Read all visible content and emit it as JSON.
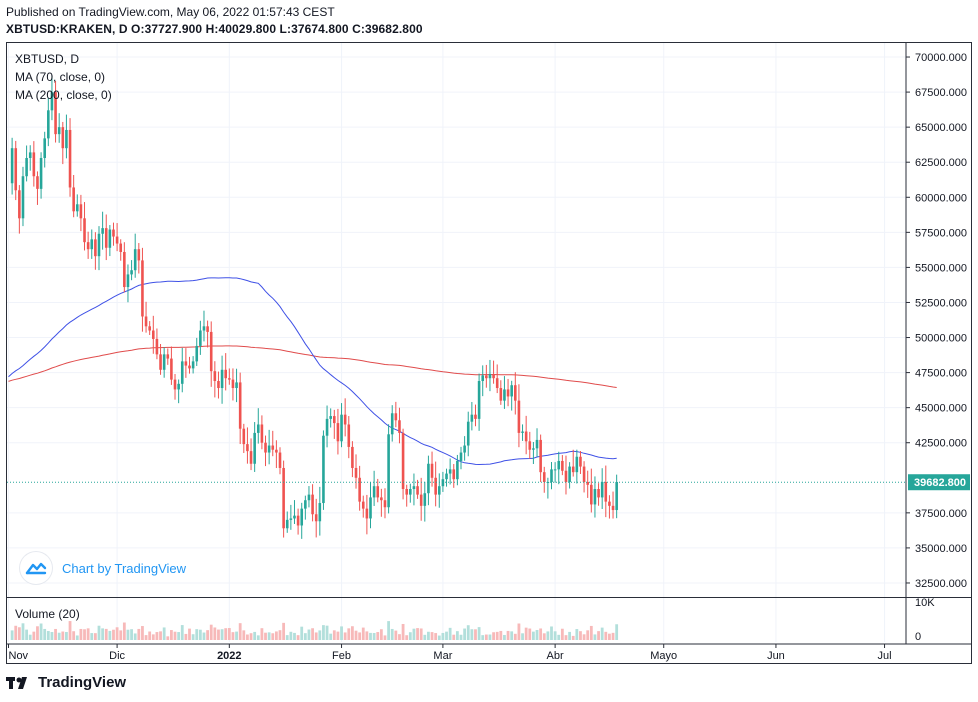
{
  "header": {
    "published": "Published on TradingView.com, May 06, 2022 01:57:43 CEST",
    "ohlc": "XBTUSD:KRAKEN, D  O:37727.900 H:40029.800 L:37674.800 C:39682.800"
  },
  "legend": {
    "symbol": "XBTUSD, D",
    "ma70": "MA (70, close, 0)",
    "ma200": "MA (200, close, 0)",
    "volume": "Volume (20)"
  },
  "watermark": {
    "text": "Chart by TradingView"
  },
  "footer": {
    "brand": "TradingView"
  },
  "colors": {
    "up": "#26a69a",
    "down": "#ef5350",
    "ma70": "#3f51e6",
    "ma200": "#e04b4b",
    "vol_up": "#b2dfdb",
    "vol_down": "#f7b9b9",
    "grid": "#f0f3fa"
  },
  "chart_data": {
    "type": "candlestick",
    "title": "XBTUSD, D",
    "last_price": "39682.800",
    "y_ticks": [
      "70000.000",
      "67500.000",
      "65000.000",
      "62500.000",
      "60000.000",
      "57500.000",
      "55000.000",
      "52500.000",
      "50000.000",
      "47500.000",
      "45000.000",
      "42500.000",
      "37500.000",
      "35000.000",
      "32500.000"
    ],
    "y_tick_values": [
      70000,
      67500,
      65000,
      62500,
      60000,
      57500,
      55000,
      52500,
      50000,
      47500,
      45000,
      42500,
      37500,
      35000,
      32500
    ],
    "ylim": [
      31500,
      71000
    ],
    "volume_ticks": [
      "10K",
      "0"
    ],
    "x_labels": [
      "Nov",
      "Dic",
      "2022",
      "Feb",
      "Mar",
      "Abr",
      "Mayo",
      "Jun",
      "Jul"
    ],
    "x_label_days": [
      0,
      30,
      61,
      92,
      120,
      151,
      181,
      212,
      242
    ],
    "closes": [
      61000,
      63500,
      60500,
      58500,
      61500,
      62800,
      63200,
      61500,
      60600,
      62800,
      64200,
      66200,
      67500,
      64500,
      65000,
      63500,
      64800,
      60700,
      59000,
      59500,
      58500,
      56800,
      56300,
      57000,
      55800,
      57400,
      57800,
      56400,
      57700,
      57200,
      56700,
      56100,
      53600,
      54500,
      54800,
      56300,
      55500,
      51500,
      50800,
      50500,
      49900,
      48800,
      47700,
      48800,
      48500,
      47000,
      46300,
      46700,
      48300,
      48000,
      47800,
      48300,
      49400,
      50500,
      50800,
      50400,
      47600,
      46900,
      46400,
      47700,
      47100,
      47000,
      46400,
      46800,
      43500,
      42400,
      41900,
      41000,
      43200,
      43800,
      42500,
      41800,
      42300,
      42000,
      41800,
      40700,
      36400,
      37000,
      37100,
      37300,
      36600,
      37800,
      38400,
      38800,
      37400,
      36900,
      38200,
      43000,
      44200,
      44400,
      43900,
      42600,
      44500,
      43800,
      42200,
      40700,
      40000,
      38300,
      37800,
      37100,
      38600,
      39400,
      38600,
      38400,
      37900,
      43100,
      44600,
      44100,
      43200,
      39200,
      38800,
      39200,
      39400,
      38800,
      38000,
      38900,
      41000,
      40000,
      38800,
      39400,
      39900,
      40300,
      40600,
      39900,
      41200,
      41800,
      42300,
      44000,
      44500,
      44200,
      46900,
      47300,
      47100,
      47400,
      47100,
      46400,
      45500,
      46300,
      45800,
      46600,
      45500,
      43200,
      43300,
      42600,
      42000,
      42100,
      42700,
      40400,
      39700,
      39700,
      40600,
      40600,
      41200,
      40500,
      39700,
      40800,
      40400,
      41500,
      40800,
      39700,
      39500,
      38100,
      39200,
      38600,
      39700,
      38300,
      38000,
      37700,
      39700
    ]
  }
}
